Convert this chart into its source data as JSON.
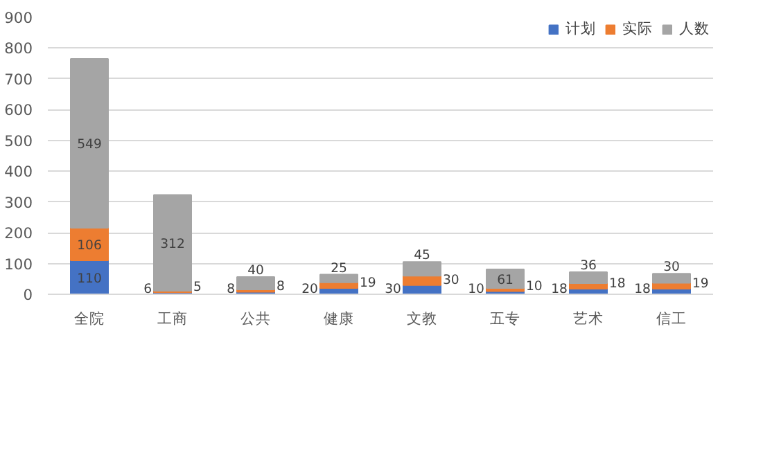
{
  "chart_data": {
    "type": "bar",
    "stacked": true,
    "categories": [
      "全院",
      "工商",
      "公共",
      "健康",
      "文教",
      "五专",
      "艺术",
      "信工"
    ],
    "series": [
      {
        "name": "计划",
        "color": "#4472c4",
        "values": [
          110,
          6,
          8,
          20,
          30,
          10,
          18,
          18
        ]
      },
      {
        "name": "实际",
        "color": "#ed7d31",
        "values": [
          106,
          5,
          8,
          19,
          30,
          10,
          18,
          19
        ]
      },
      {
        "name": "人数",
        "color": "#a5a5a5",
        "values": [
          549,
          312,
          40,
          25,
          45,
          61,
          36,
          30
        ]
      }
    ],
    "ylim": [
      0,
      900
    ],
    "yticks": [
      0,
      100,
      200,
      300,
      400,
      500,
      600,
      700,
      800,
      900
    ],
    "grid": "y",
    "legend": "top right",
    "data_labels": true
  }
}
